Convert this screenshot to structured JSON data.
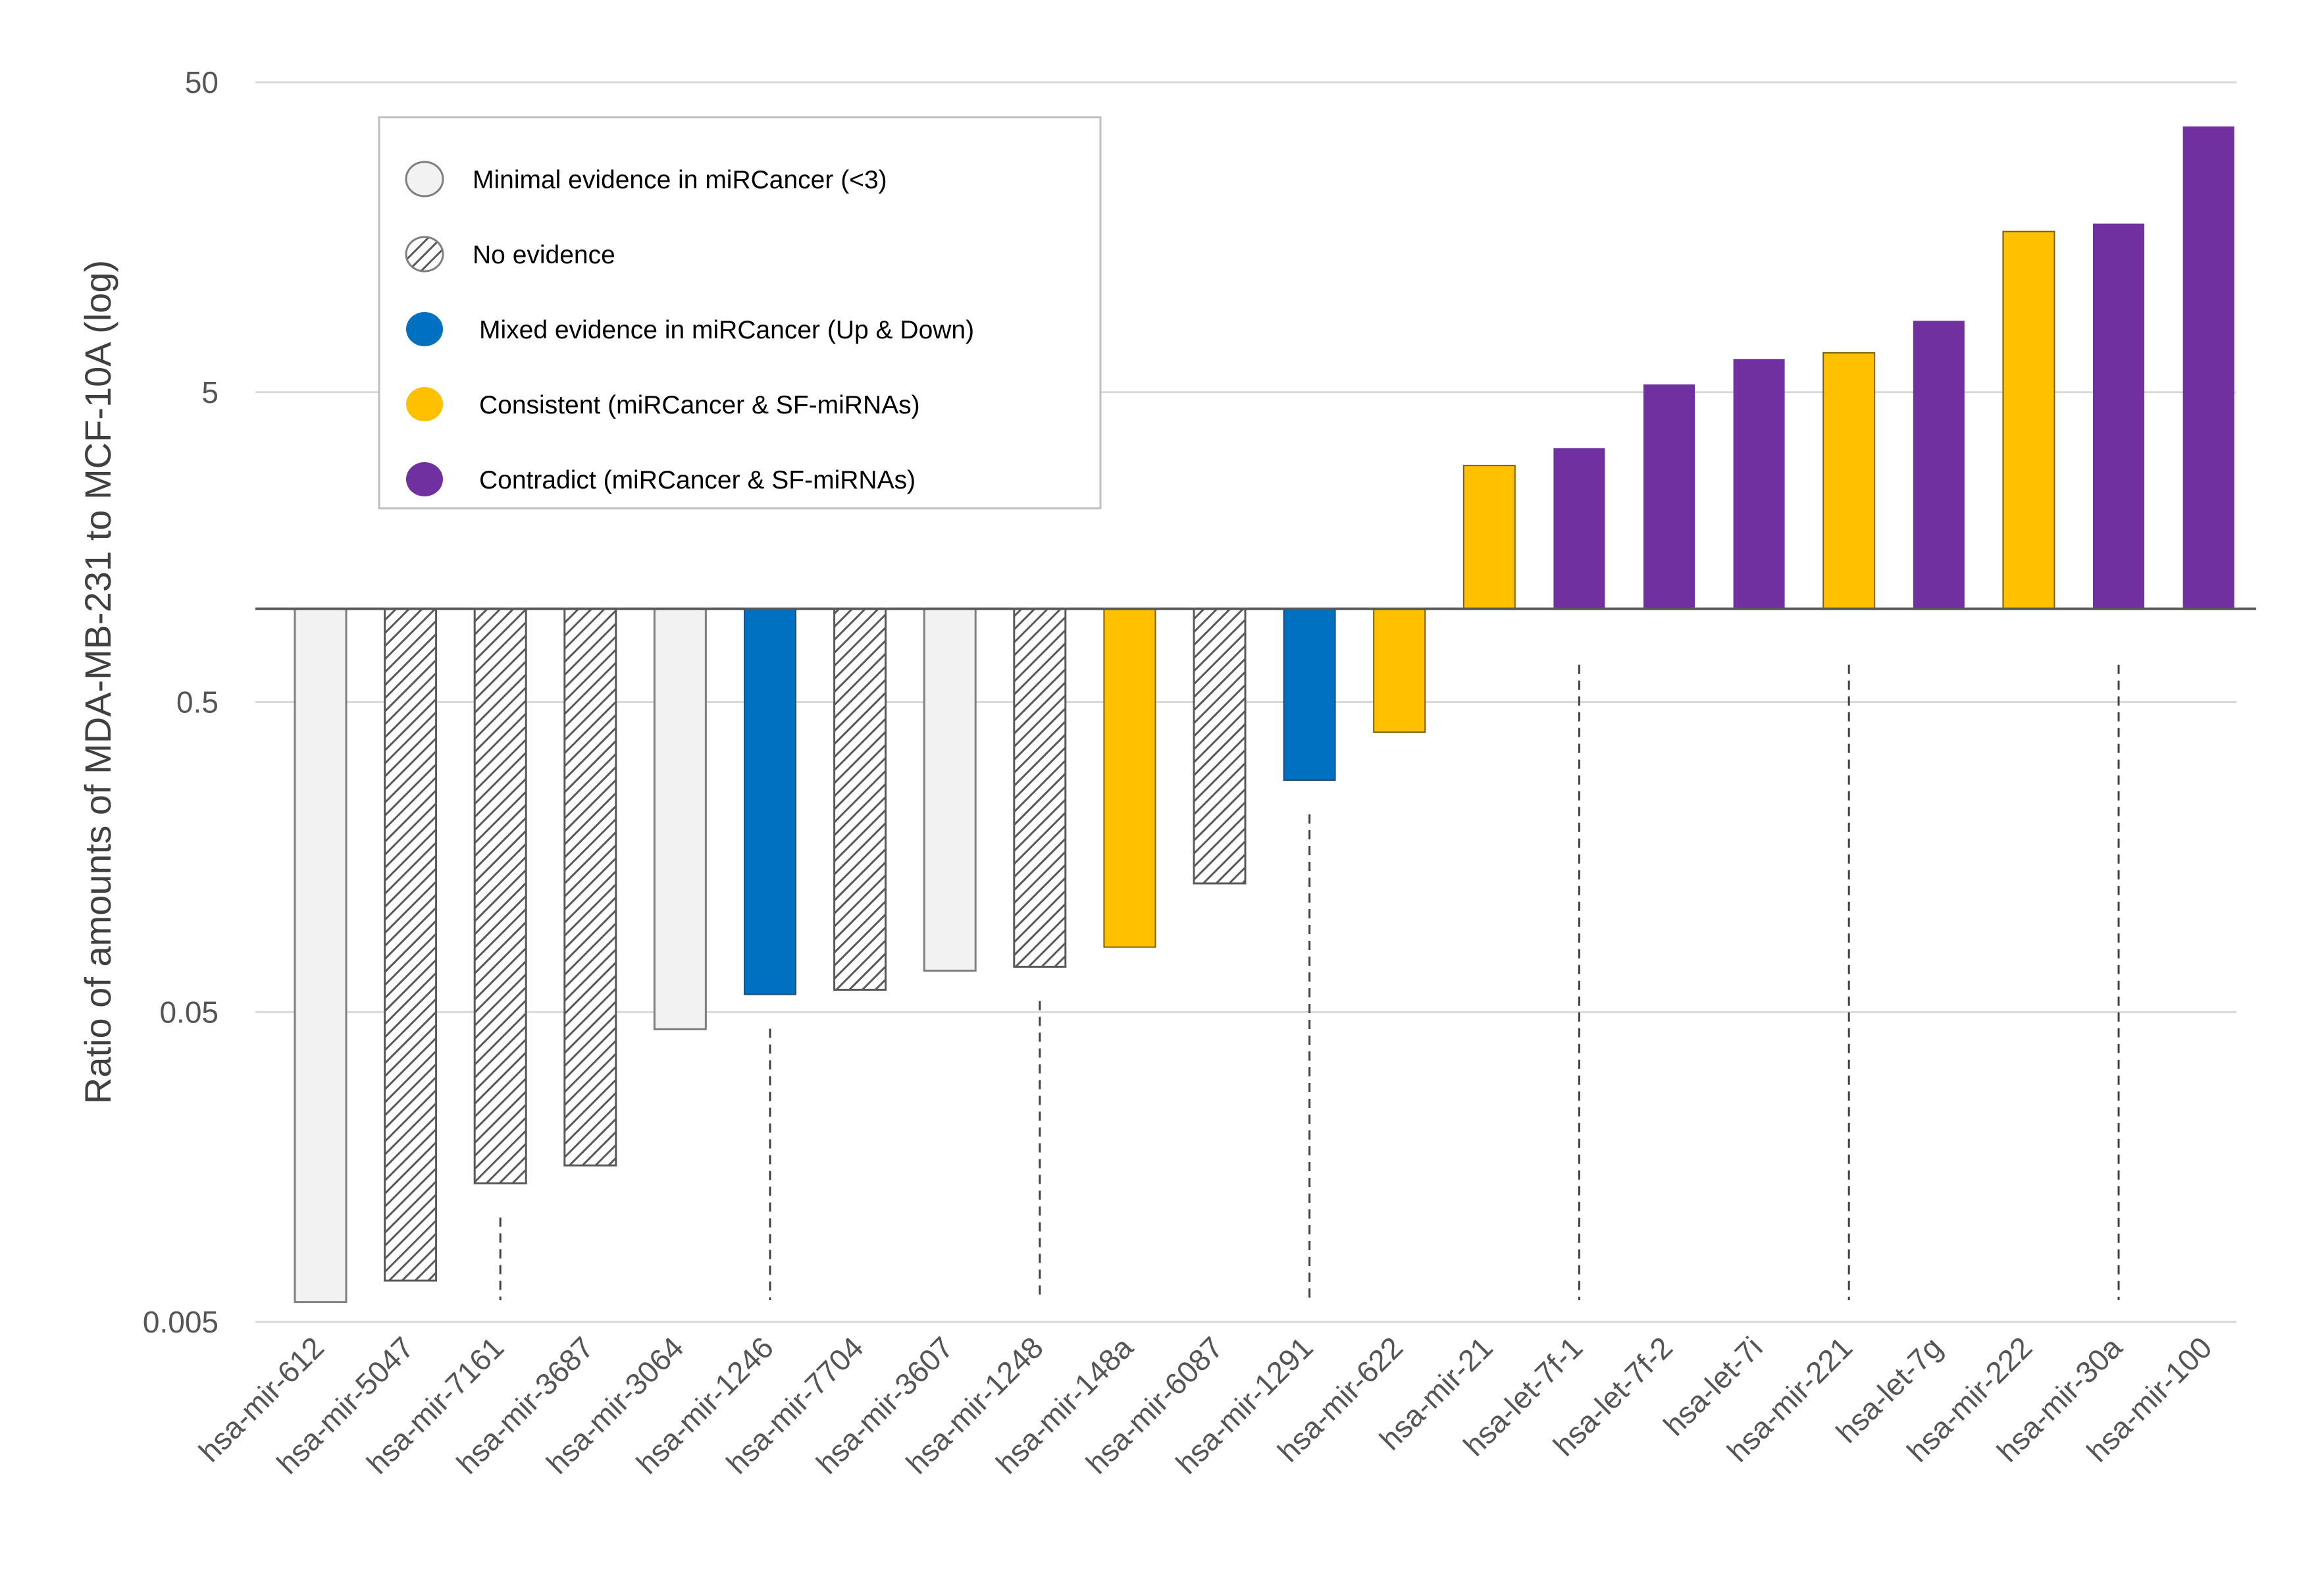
{
  "chart_data": {
    "type": "bar",
    "title": "",
    "xlabel": "",
    "ylabel": "Ratio of amounts of MDA-MB-231 to MCF-10A (log)",
    "yscale": "log",
    "ylim": [
      0.005,
      50
    ],
    "baseline": 1,
    "yticks": [
      "50",
      "5",
      "0.5",
      "0.05",
      "0.005"
    ],
    "ytick_values": [
      50,
      5,
      0.5,
      0.05,
      0.005
    ],
    "grid": true,
    "legend_position": "top-left",
    "legend": [
      {
        "key": "minimal",
        "label": "Minimal evidence in miRCancer (<3)",
        "fill": "#f2f2f2",
        "pattern": "solid"
      },
      {
        "key": "none",
        "label": "No evidence",
        "fill": "#ffffff",
        "pattern": "hatched"
      },
      {
        "key": "mixed",
        "label": "Mixed evidence in miRCancer (Up & Down)",
        "fill": "#0070c0",
        "pattern": "solid"
      },
      {
        "key": "consistent",
        "label": "Consistent (miRCancer & SF-miRNAs)",
        "fill": "#ffc000",
        "pattern": "solid"
      },
      {
        "key": "contradict",
        "label": "Contradict (miRCancer & SF-miRNAs)",
        "fill": "#7030a0",
        "pattern": "solid"
      }
    ],
    "categories": [
      "hsa-mir-612",
      "hsa-mir-5047",
      "hsa-mir-7161",
      "hsa-mir-3687",
      "hsa-mir-3064",
      "hsa-mir-1246",
      "hsa-mir-7704",
      "hsa-mir-3607",
      "hsa-mir-1248",
      "hsa-mir-148a",
      "hsa-mir-6087",
      "hsa-mir-1291",
      "hsa-mir-622",
      "hsa-mir-21",
      "hsa-let-7f-1",
      "hsa-let-7f-2",
      "hsa-let-7i",
      "hsa-mir-221",
      "hsa-let-7g",
      "hsa-mir-222",
      "hsa-mir-30a",
      "hsa-mir-100"
    ],
    "values": [
      0.0058,
      0.0068,
      0.014,
      0.016,
      0.044,
      0.057,
      0.059,
      0.068,
      0.07,
      0.081,
      0.13,
      0.28,
      0.4,
      2.9,
      3.3,
      5.3,
      6.4,
      6.7,
      8.5,
      16.5,
      17.5,
      36
    ],
    "evidence": [
      "minimal",
      "none",
      "none",
      "none",
      "minimal",
      "mixed",
      "none",
      "minimal",
      "none",
      "consistent",
      "none",
      "mixed",
      "consistent",
      "consistent",
      "contradict",
      "contradict",
      "contradict",
      "consistent",
      "contradict",
      "consistent",
      "contradict",
      "contradict"
    ],
    "dashed_markers": [
      "hsa-mir-7161",
      "hsa-mir-1246",
      "hsa-mir-1248",
      "hsa-mir-1291",
      "hsa-let-7f-1",
      "hsa-mir-221",
      "hsa-mir-30a"
    ]
  },
  "colors": {
    "minimal": "#f2f2f2",
    "none_hatch": "#595959",
    "mixed": "#0070c0",
    "consistent": "#ffc000",
    "contradict": "#7030a0",
    "grid": "#d9d9d9",
    "axis": "#595959"
  }
}
